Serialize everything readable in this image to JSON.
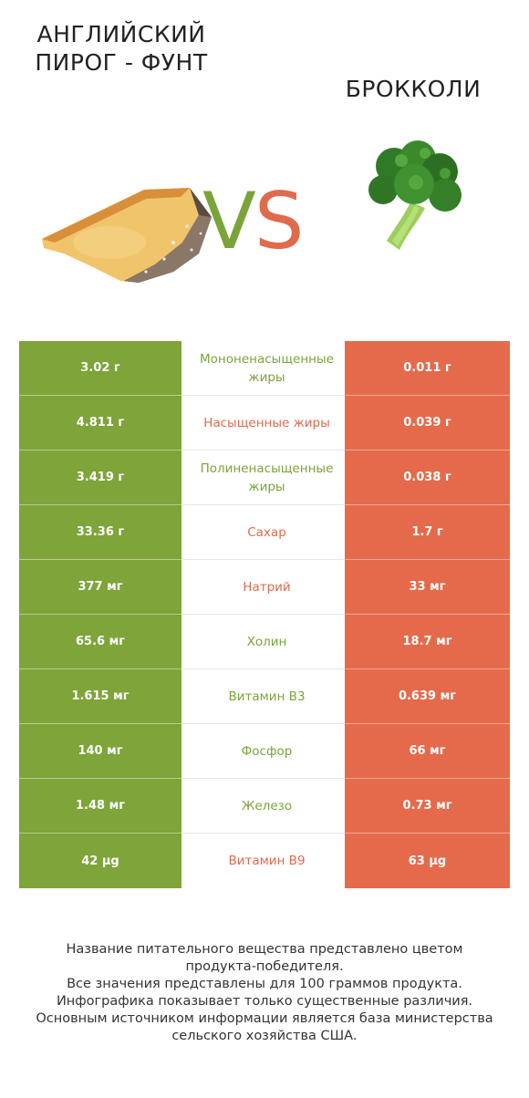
{
  "header": {
    "left_title": "АНГЛИЙСКИЙ ПИРОГ - ФУНТ",
    "right_title": "БРОККОЛИ",
    "vs_v": "V",
    "vs_s": "S"
  },
  "colors": {
    "winner_left": "#7ea43a",
    "winner_right": "#e56a4b"
  },
  "rows": [
    {
      "left": "3.02 г",
      "nutrient": "Мононенасыщенные жиры",
      "right": "0.011 г",
      "winner": "left"
    },
    {
      "left": "4.811 г",
      "nutrient": "Насыщенные жиры",
      "right": "0.039 г",
      "winner": "right"
    },
    {
      "left": "3.419 г",
      "nutrient": "Полиненасыщенные жиры",
      "right": "0.038 г",
      "winner": "left"
    },
    {
      "left": "33.36 г",
      "nutrient": "Сахар",
      "right": "1.7 г",
      "winner": "right"
    },
    {
      "left": "377 мг",
      "nutrient": "Натрий",
      "right": "33 мг",
      "winner": "right"
    },
    {
      "left": "65.6 мг",
      "nutrient": "Холин",
      "right": "18.7 мг",
      "winner": "left"
    },
    {
      "left": "1.615 мг",
      "nutrient": "Витамин B3",
      "right": "0.639 мг",
      "winner": "left"
    },
    {
      "left": "140 мг",
      "nutrient": "Фосфор",
      "right": "66 мг",
      "winner": "left"
    },
    {
      "left": "1.48 мг",
      "nutrient": "Железо",
      "right": "0.73 мг",
      "winner": "left"
    },
    {
      "left": "42 µg",
      "nutrient": "Витамин B9",
      "right": "63 µg",
      "winner": "right"
    }
  ],
  "footer": {
    "line1": "Название питательного вещества представлено цветом",
    "line2": "продукта-победителя.",
    "line3": "Все значения представлены для 100 граммов продукта.",
    "line4": "Инфографика показывает только существенные различия.",
    "line5": "Основным источником информации является база министерства",
    "line6": "сельского хозяйства США."
  }
}
